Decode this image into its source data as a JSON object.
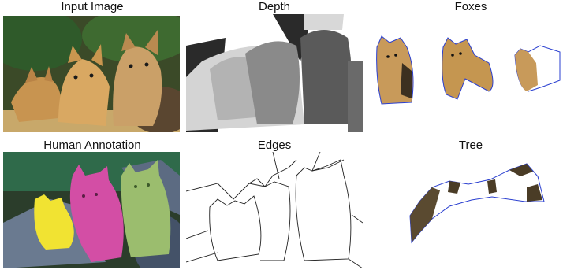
{
  "figure": {
    "titles": {
      "input_image": "Input Image",
      "depth": "Depth",
      "foxes": "Foxes",
      "human_annotation": "Human Annotation",
      "edges": "Edges",
      "tree": "Tree"
    }
  },
  "colors": {
    "annotation_yellow": "#f1e332",
    "annotation_magenta": "#d34ea5",
    "annotation_green": "#9bbd6e",
    "mask_outline": "#2a3fd0"
  }
}
